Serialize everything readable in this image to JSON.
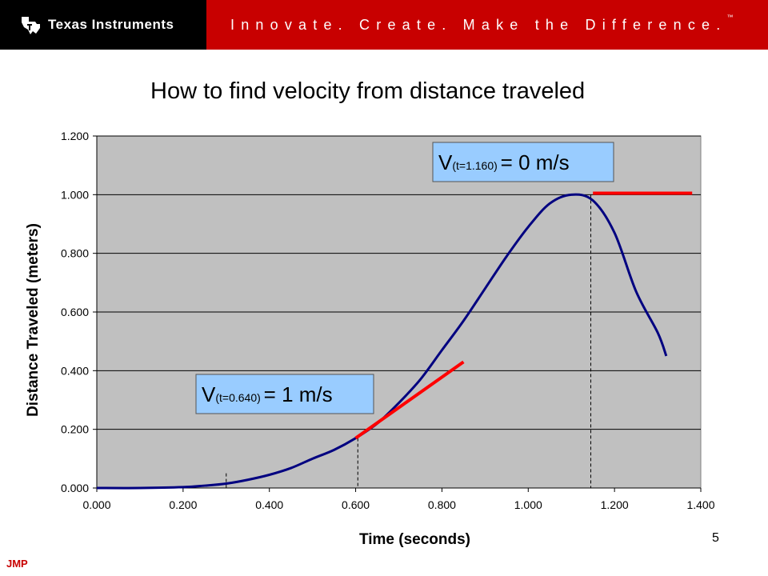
{
  "header": {
    "company": "Texas Instruments",
    "slogan": "Innovate. Create. Make the Difference.",
    "trademark": "™",
    "logo_icon": "texas-state-logo-icon",
    "colors": {
      "logo_bg": "#000000",
      "banner_bg": "#c80000"
    }
  },
  "slide": {
    "title": "How to find velocity from distance traveled",
    "page_number": "5",
    "footer": "JMP"
  },
  "chart_data": {
    "type": "line",
    "title": "How to find velocity from distance traveled",
    "xlabel": "Time (seconds)",
    "ylabel": "Distance Traveled (meters)",
    "xlim": [
      0,
      1.4
    ],
    "ylim": [
      0,
      1.2
    ],
    "x_ticks": [
      "0.000",
      "0.200",
      "0.400",
      "0.600",
      "0.800",
      "1.000",
      "1.200",
      "1.400"
    ],
    "y_ticks": [
      "0.000",
      "0.200",
      "0.400",
      "0.600",
      "0.800",
      "1.000",
      "1.200"
    ],
    "grid": "horizontal",
    "plot_bg": "#c0c0c0",
    "series": [
      {
        "color": "#000080",
        "x": [
          0.0,
          0.1,
          0.2,
          0.25,
          0.3,
          0.35,
          0.4,
          0.45,
          0.5,
          0.55,
          0.6,
          0.65,
          0.7,
          0.75,
          0.8,
          0.85,
          0.9,
          0.95,
          1.0,
          1.05,
          1.1,
          1.15,
          1.2,
          1.25,
          1.3,
          1.32
        ],
        "y": [
          0.0,
          0.0,
          0.003,
          0.008,
          0.015,
          0.028,
          0.045,
          0.068,
          0.1,
          0.13,
          0.17,
          0.22,
          0.29,
          0.37,
          0.47,
          0.57,
          0.68,
          0.79,
          0.89,
          0.97,
          1.0,
          0.98,
          0.87,
          0.67,
          0.53,
          0.45
        ]
      }
    ],
    "tangents": [
      {
        "color": "#ff0000",
        "x": [
          0.6,
          0.85
        ],
        "y": [
          0.17,
          0.43
        ]
      },
      {
        "color": "#ff0000",
        "x": [
          1.15,
          1.38
        ],
        "y": [
          1.005,
          1.005
        ]
      }
    ],
    "reference_lines": [
      {
        "x": 0.3,
        "y_top": 0.05
      },
      {
        "x": 0.605,
        "y_top": 0.17
      },
      {
        "x": 1.145,
        "y_top": 1.0
      }
    ],
    "annotations": [
      {
        "main": "V",
        "sub": "(t=1.160)",
        "rest": "= 0 m/s",
        "anchor": "upper"
      },
      {
        "main": "V",
        "sub": "(t=0.640)",
        "rest": "= 1 m/s",
        "anchor": "lower"
      }
    ]
  }
}
